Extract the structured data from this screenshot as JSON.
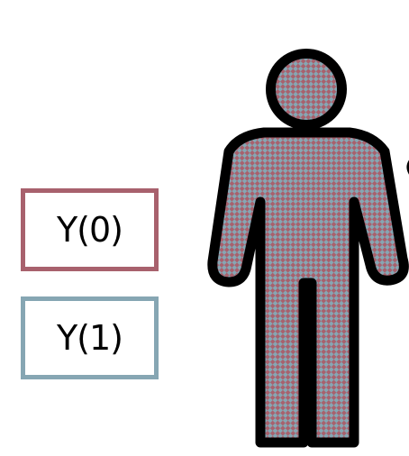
{
  "labels": {
    "y0": "Y(0)",
    "y1": "Y(1)"
  },
  "colors": {
    "y0_border": "#a8616d",
    "y1_border": "#86a6b3",
    "pattern_base": "#a8616d",
    "pattern_check": "#86a6b3",
    "outline": "#000000"
  },
  "icons": {
    "figure": "person-icon"
  }
}
